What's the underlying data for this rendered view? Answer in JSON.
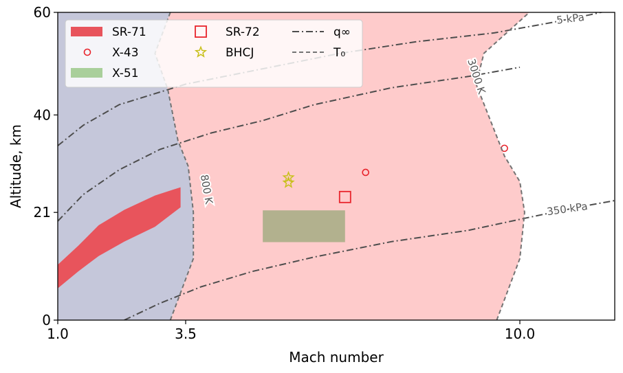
{
  "chart_data": {
    "type": "scatter",
    "xlabel": "Mach number",
    "ylabel": "Altitude, km",
    "xlim": [
      1.0,
      13.0
    ],
    "ylim": [
      0,
      60
    ],
    "xticks": [
      {
        "value": 1.0,
        "label": "1.0"
      },
      {
        "value": 3.5,
        "label": "3.5"
      },
      {
        "value": 10.0,
        "label": "10.0"
      }
    ],
    "yticks": [
      {
        "value": 0,
        "label": "0"
      },
      {
        "value": 21,
        "label": "21"
      },
      {
        "value": 40,
        "label": "40"
      },
      {
        "value": 60,
        "label": "60"
      }
    ],
    "grid": false,
    "legend_position": "top-left",
    "regions": [
      {
        "name": "cold",
        "color": "#c5c7da",
        "points": [
          [
            1.0,
            0
          ],
          [
            3.2,
            0
          ],
          [
            3.65,
            12
          ],
          [
            3.65,
            21
          ],
          [
            3.55,
            30
          ],
          [
            3.35,
            35
          ],
          [
            3.15,
            45
          ],
          [
            2.9,
            52
          ],
          [
            3.2,
            60
          ],
          [
            1.0,
            60
          ]
        ]
      },
      {
        "name": "hot",
        "color": "#fecbcb",
        "points": [
          [
            3.2,
            0
          ],
          [
            9.55,
            0
          ],
          [
            10.0,
            12
          ],
          [
            10.15,
            21
          ],
          [
            10.0,
            27
          ],
          [
            9.7,
            32
          ],
          [
            9.15,
            46
          ],
          [
            9.3,
            52
          ],
          [
            10.3,
            60
          ],
          [
            3.2,
            60
          ],
          [
            2.9,
            52
          ],
          [
            3.15,
            45
          ],
          [
            3.35,
            35
          ],
          [
            3.55,
            30
          ],
          [
            3.65,
            21
          ],
          [
            3.65,
            12
          ]
        ]
      }
    ],
    "series": [
      {
        "name": "SR-71",
        "kind": "band",
        "color": "#e8545c",
        "upper": [
          [
            1.0,
            10.8
          ],
          [
            1.4,
            14.5
          ],
          [
            1.8,
            18.5
          ],
          [
            2.3,
            21.5
          ],
          [
            2.9,
            24.3
          ],
          [
            3.4,
            25.9
          ]
        ],
        "lower": [
          [
            1.0,
            6.2
          ],
          [
            1.4,
            9.5
          ],
          [
            1.8,
            12.5
          ],
          [
            2.3,
            15.3
          ],
          [
            2.9,
            18.2
          ],
          [
            3.4,
            22.0
          ]
        ]
      },
      {
        "name": "X-43",
        "kind": "scatter",
        "marker": "circle",
        "color": "#e8232b",
        "points": [
          [
            7.0,
            28.8
          ],
          [
            9.7,
            33.5
          ]
        ]
      },
      {
        "name": "X-51",
        "kind": "rect",
        "color": "#b2b18e",
        "legend_color": "#a9cf9b",
        "x": [
          5.0,
          6.6
        ],
        "y": [
          15.2,
          21.4
        ]
      },
      {
        "name": "SR-72",
        "kind": "scatter",
        "marker": "square",
        "color": "#e8232b",
        "points": [
          [
            6.6,
            24.0
          ]
        ]
      },
      {
        "name": "BHCJ",
        "kind": "scatter",
        "marker": "star",
        "color": "#c8c01c",
        "points": [
          [
            5.5,
            26.8
          ],
          [
            5.5,
            27.8
          ]
        ]
      }
    ],
    "contours": [
      {
        "name": "q_inf",
        "style": "dashdot",
        "color": "#4d4d4d",
        "label": "5 kPa",
        "points": [
          [
            1.0,
            34
          ],
          [
            1.5,
            38
          ],
          [
            2.2,
            42
          ],
          [
            3.5,
            46
          ],
          [
            5.0,
            49
          ],
          [
            6.5,
            52
          ],
          [
            8.0,
            54.3
          ],
          [
            9.5,
            56
          ],
          [
            11.0,
            58
          ],
          [
            12.2,
            59.5
          ],
          [
            13.0,
            60.6
          ]
        ]
      },
      {
        "name": "q_inf",
        "style": "dashdot",
        "color": "#4d4d4d",
        "label": "",
        "points": [
          [
            1.0,
            19.3
          ],
          [
            1.5,
            24.5
          ],
          [
            2.2,
            29.3
          ],
          [
            3.0,
            33.3
          ],
          [
            4.0,
            36.5
          ],
          [
            5.0,
            38.9
          ],
          [
            6.0,
            42.0
          ],
          [
            7.5,
            45.3
          ],
          [
            9.0,
            47.5
          ],
          [
            10.0,
            49.3
          ]
        ]
      },
      {
        "name": "q_inf",
        "style": "dashdot",
        "color": "#4d4d4d",
        "label": "350 kPa",
        "points": [
          [
            2.3,
            0
          ],
          [
            3.0,
            3.3
          ],
          [
            3.8,
            6.5
          ],
          [
            4.8,
            9.5
          ],
          [
            6.0,
            12.3
          ],
          [
            7.5,
            15.3
          ],
          [
            9.0,
            17.5
          ],
          [
            10.5,
            20.3
          ],
          [
            12.0,
            22.2
          ],
          [
            13.0,
            23.3
          ]
        ]
      },
      {
        "name": "T_0",
        "style": "dashed",
        "color": "#737373",
        "label": "800 K",
        "points": [
          [
            3.2,
            0
          ],
          [
            3.65,
            12
          ],
          [
            3.65,
            21
          ],
          [
            3.55,
            30
          ],
          [
            3.35,
            35
          ],
          [
            3.15,
            45
          ],
          [
            2.9,
            52
          ],
          [
            3.2,
            60
          ]
        ]
      },
      {
        "name": "T_0",
        "style": "dashed",
        "color": "#737373",
        "label": "3000 K",
        "points": [
          [
            9.55,
            0
          ],
          [
            10.0,
            12
          ],
          [
            10.15,
            21
          ],
          [
            10.0,
            27
          ],
          [
            9.7,
            32
          ],
          [
            9.15,
            46
          ],
          [
            9.3,
            52
          ],
          [
            10.3,
            60
          ]
        ]
      }
    ],
    "contour_labels": [
      {
        "text": "5 kPa",
        "x": 11.6,
        "y": 58.7,
        "angle": -7
      },
      {
        "text": "350 kPa",
        "x": 11.5,
        "y": 21.6,
        "angle": -8
      },
      {
        "text": "800 K",
        "x": 3.9,
        "y": 25.5,
        "angle": 80
      },
      {
        "text": "3000 K",
        "x": 9.15,
        "y": 47.5,
        "angle": 72
      }
    ],
    "legend": [
      {
        "label": "SR-71",
        "symbol": "patch",
        "color": "#e8545c"
      },
      {
        "label": "X-43",
        "symbol": "circle",
        "color": "#e8232b"
      },
      {
        "label": "X-51",
        "symbol": "patch",
        "color": "#a9cf9b"
      },
      {
        "label": "SR-72",
        "symbol": "square",
        "color": "#e8232b"
      },
      {
        "label": "BHCJ",
        "symbol": "star",
        "color": "#c8c01c"
      },
      {
        "label": "",
        "symbol": "blank",
        "color": ""
      },
      {
        "label": "q∞",
        "symbol": "dashdot",
        "color": "#4d4d4d"
      },
      {
        "label": "T₀",
        "symbol": "dashed",
        "color": "#737373"
      }
    ]
  }
}
